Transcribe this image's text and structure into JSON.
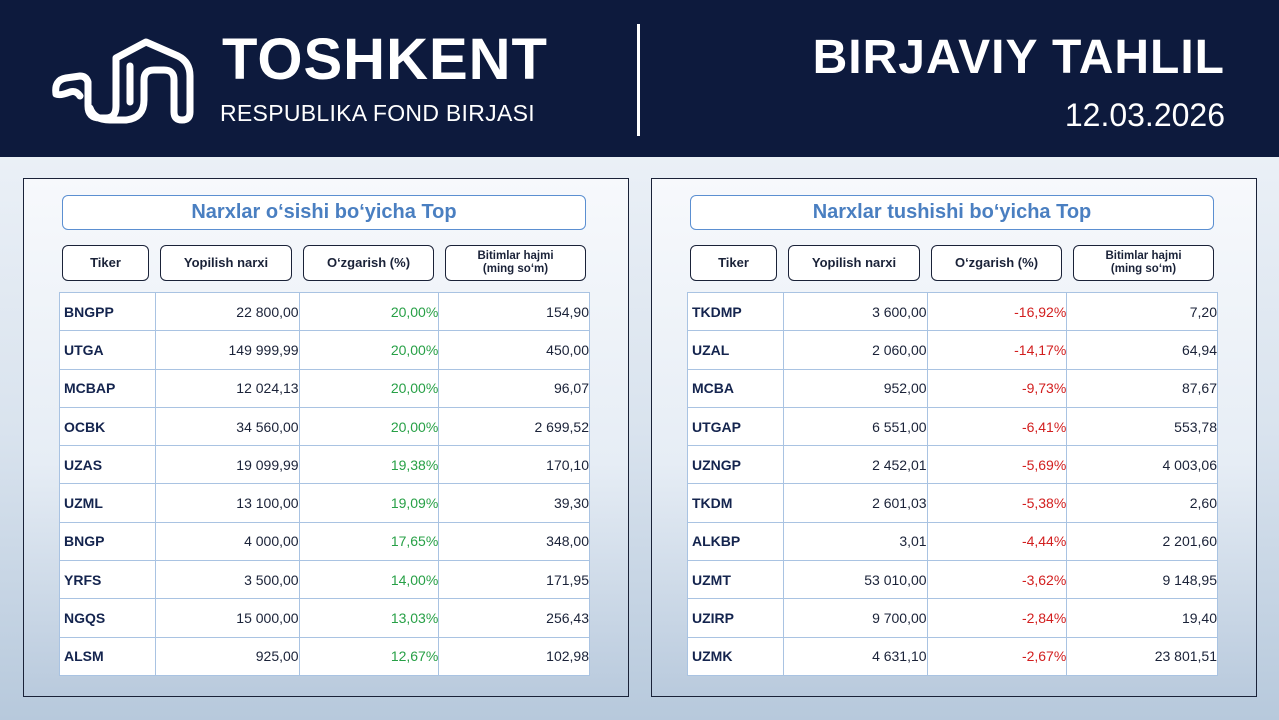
{
  "header": {
    "brand_title": "TOSHKENT",
    "brand_subtitle": "RESPUBLIKA FOND BIRJASI",
    "report_title": "BIRJAVIY TAHLIL",
    "report_date": "12.03.2026",
    "logo_icon": "tfb-logo-icon"
  },
  "colors": {
    "header_bg": "#0d1a3d",
    "accent_blue": "#4a7fc1",
    "positive": "#27a046",
    "negative": "#d21e1e"
  },
  "gainers": {
    "title": "Narxlar o‘sishi bo‘yicha Top",
    "columns": [
      "Tiker",
      "Yopilish narxi",
      "O‘zgarish (%)",
      "Bitimlar hajmi\n(ming so‘m)"
    ],
    "columns_line1": [
      "Tiker",
      "Yopilish narxi",
      "O‘zgarish (%)",
      "Bitimlar hajmi"
    ],
    "col4_line2": "(ming so‘m)",
    "rows": [
      [
        "BNGPP",
        "22 800,00",
        "20,00%",
        "154,90"
      ],
      [
        "UTGA",
        "149 999,99",
        "20,00%",
        "450,00"
      ],
      [
        "MCBAP",
        "12 024,13",
        "20,00%",
        "96,07"
      ],
      [
        "OCBK",
        "34 560,00",
        "20,00%",
        "2 699,52"
      ],
      [
        "UZAS",
        "19 099,99",
        "19,38%",
        "170,10"
      ],
      [
        "UZML",
        "13 100,00",
        "19,09%",
        "39,30"
      ],
      [
        "BNGP",
        "4 000,00",
        "17,65%",
        "348,00"
      ],
      [
        "YRFS",
        "3 500,00",
        "14,00%",
        "171,95"
      ],
      [
        "NGQS",
        "15 000,00",
        "13,03%",
        "256,43"
      ],
      [
        "ALSM",
        "925,00",
        "12,67%",
        "102,98"
      ]
    ]
  },
  "losers": {
    "title": "Narxlar tushishi bo‘yicha Top",
    "columns_line1": [
      "Tiker",
      "Yopilish narxi",
      "O‘zgarish (%)",
      "Bitimlar hajmi"
    ],
    "col4_line2": "(ming so‘m)",
    "rows": [
      [
        "TKDMP",
        "3 600,00",
        "-16,92%",
        "7,20"
      ],
      [
        "UZAL",
        "2 060,00",
        "-14,17%",
        "64,94"
      ],
      [
        "MCBA",
        "952,00",
        "-9,73%",
        "87,67"
      ],
      [
        "UTGAP",
        "6 551,00",
        "-6,41%",
        "553,78"
      ],
      [
        "UZNGP",
        "2 452,01",
        "-5,69%",
        "4 003,06"
      ],
      [
        "TKDM",
        "2 601,03",
        "-5,38%",
        "2,60"
      ],
      [
        "ALKBP",
        "3,01",
        "-4,44%",
        "2 201,60"
      ],
      [
        "UZMT",
        "53 010,00",
        "-3,62%",
        "9 148,95"
      ],
      [
        "UZIRP",
        "9 700,00",
        "-2,84%",
        "19,40"
      ],
      [
        "UZMK",
        "4 631,10",
        "-2,67%",
        "23 801,51"
      ]
    ]
  }
}
